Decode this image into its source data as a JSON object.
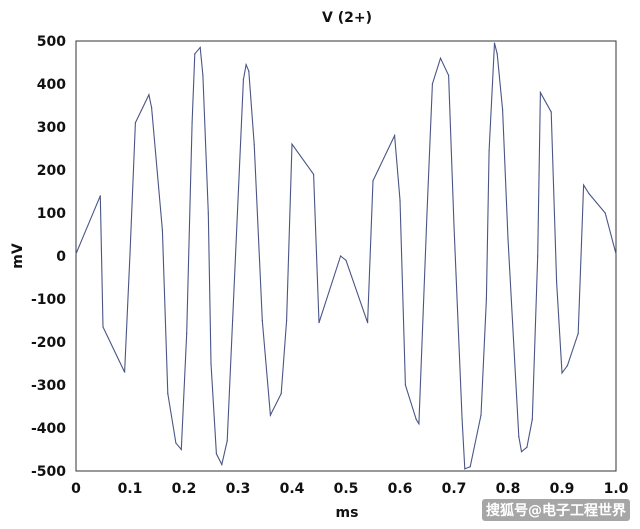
{
  "chart_data": {
    "type": "line",
    "title": "V (2+)",
    "xlabel": "ms",
    "ylabel": "mV",
    "xlim": [
      0,
      1.0
    ],
    "ylim": [
      -500,
      500
    ],
    "xticks": [
      "0",
      "0.1",
      "0.2",
      "0.3",
      "0.4",
      "0.5",
      "0.6",
      "0.7",
      "0.8",
      "0.9",
      "1.0"
    ],
    "yticks": [
      "500",
      "400",
      "300",
      "200",
      "100",
      "0",
      "-100",
      "-200",
      "-300",
      "-400",
      "-500"
    ],
    "grid": false,
    "line_color": "#4a5585",
    "series": [
      {
        "x": [
          0,
          0.045,
          0.05,
          0.09,
          0.1,
          0.11,
          0.135,
          0.14,
          0.16,
          0.17,
          0.185,
          0.195,
          0.205,
          0.215,
          0.22,
          0.23,
          0.235,
          0.245,
          0.25,
          0.26,
          0.27,
          0.28,
          0.29,
          0.31,
          0.315,
          0.32,
          0.33,
          0.345,
          0.36,
          0.38,
          0.39,
          0.4,
          0.44,
          0.45,
          0.49,
          0.5,
          0.54,
          0.55,
          0.59,
          0.6,
          0.61,
          0.63,
          0.635,
          0.65,
          0.66,
          0.675,
          0.69,
          0.7,
          0.715,
          0.72,
          0.73,
          0.75,
          0.76,
          0.765,
          0.775,
          0.78,
          0.79,
          0.8,
          0.82,
          0.825,
          0.835,
          0.845,
          0.855,
          0.86,
          0.88,
          0.89,
          0.9,
          0.91,
          0.93,
          0.94,
          0.95,
          0.98,
          1.0
        ],
        "y": [
          5,
          140,
          -165,
          -270,
          5,
          310,
          375,
          345,
          60,
          -320,
          -435,
          -450,
          -180,
          310,
          470,
          485,
          420,
          100,
          -250,
          -460,
          -485,
          -430,
          -150,
          410,
          445,
          430,
          260,
          -150,
          -370,
          -320,
          -150,
          260,
          190,
          -155,
          0,
          -10,
          -155,
          175,
          280,
          130,
          -300,
          -380,
          -390,
          100,
          400,
          460,
          420,
          70,
          -380,
          -495,
          -490,
          -370,
          -100,
          245,
          495,
          470,
          340,
          40,
          -420,
          -455,
          -445,
          -380,
          0,
          380,
          335,
          -60,
          -272,
          -255,
          -180,
          165,
          145,
          100,
          5
        ]
      }
    ]
  },
  "watermark": "搜狐号@电子工程世界"
}
